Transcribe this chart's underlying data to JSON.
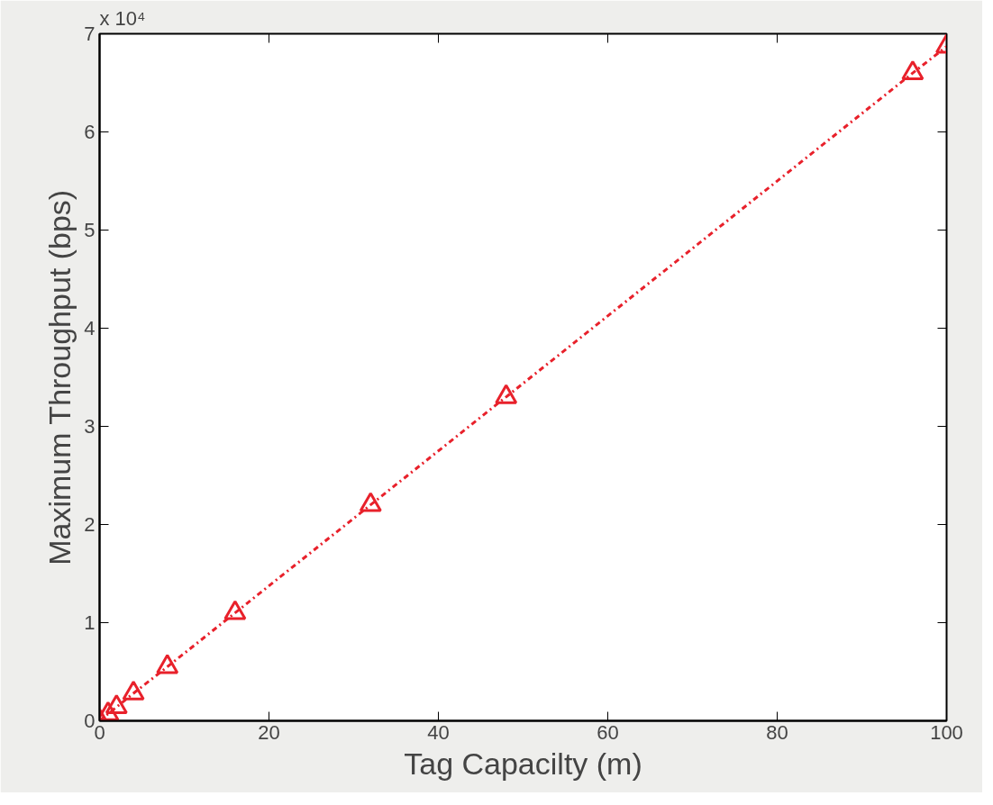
{
  "chart_data": {
    "type": "line",
    "xlabel": "Tag Capacilty (m)",
    "ylabel": "Maximum Throughput (bps)",
    "x": [
      0,
      1,
      2,
      4,
      8,
      16,
      32,
      48,
      96,
      100
    ],
    "series": [
      {
        "color": "#e8212b",
        "values": [
          0,
          0.07,
          0.14,
          0.28,
          0.55,
          1.1,
          2.2,
          3.3,
          6.6,
          6.87
        ]
      }
    ],
    "xlim": [
      0,
      100
    ],
    "xticks": [
      0,
      20,
      40,
      60,
      80,
      100
    ],
    "ylim": [
      0,
      7
    ],
    "yticks": [
      0,
      1,
      2,
      3,
      4,
      5,
      6,
      7
    ],
    "annotations": [
      "x 10⁴"
    ],
    "marker": "triangle",
    "line_style": "dashdot",
    "grid": false
  }
}
